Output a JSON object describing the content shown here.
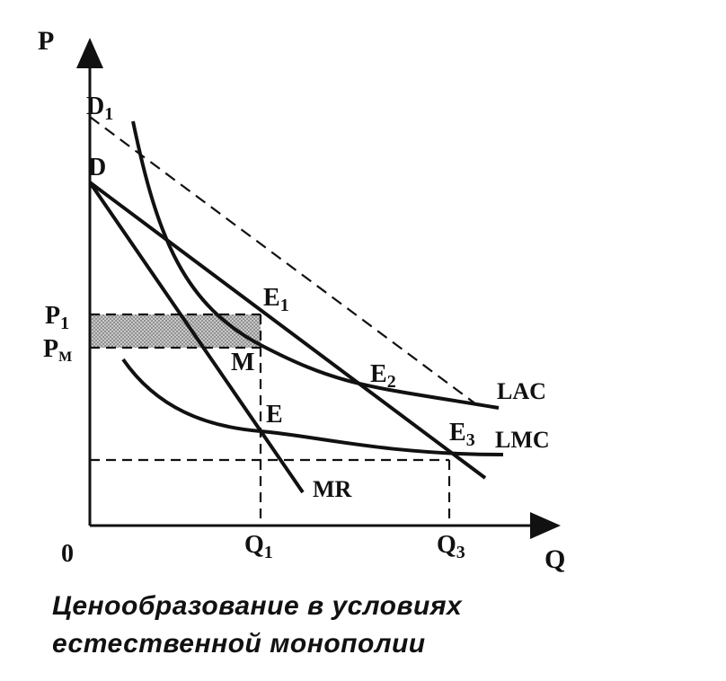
{
  "labels": {
    "y_axis": "P",
    "x_axis": "Q",
    "origin": "0",
    "d1": "D",
    "d1_sub": "1",
    "d": "D",
    "p1": "P",
    "p1_sub": "1",
    "pm": "P",
    "pm_sub": "M",
    "e1": "E",
    "e1_sub": "1",
    "m": "M",
    "e2": "E",
    "e2_sub": "2",
    "e": "E",
    "e3": "E",
    "e3_sub": "3",
    "lac": "LAC",
    "lmc": "LMC",
    "mr": "MR",
    "q1": "Q",
    "q1_sub": "1",
    "q3": "Q",
    "q3_sub": "3"
  },
  "caption": {
    "line1": "Ценообразование в условиях",
    "line2": "естественной монополии"
  },
  "colors": {
    "ink": "#111111",
    "shade": "#9a9a9a"
  }
}
